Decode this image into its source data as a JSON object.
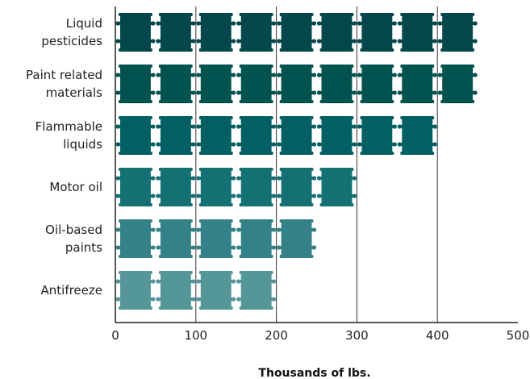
{
  "chart_data": {
    "type": "bar",
    "orientation": "horizontal",
    "categories": [
      [
        "Liquid",
        "pesticides"
      ],
      [
        "Paint related",
        "materials"
      ],
      [
        "Flammable",
        "liquids"
      ],
      [
        "Motor oil"
      ],
      [
        "Oil-based",
        "paints"
      ],
      [
        "Antifreeze"
      ]
    ],
    "values": [
      450,
      450,
      400,
      300,
      250,
      200
    ],
    "bar_colors": [
      "#01474b",
      "#01534f",
      "#025f63",
      "#137174",
      "#348187",
      "#559699"
    ],
    "xlim": [
      0,
      500
    ],
    "xticks": [
      0,
      100,
      200,
      300,
      400,
      500
    ],
    "xlabel": "Thousands of lbs.",
    "unit_per_icon": 50,
    "icon": "barrel-icon",
    "grid": "vertical"
  }
}
